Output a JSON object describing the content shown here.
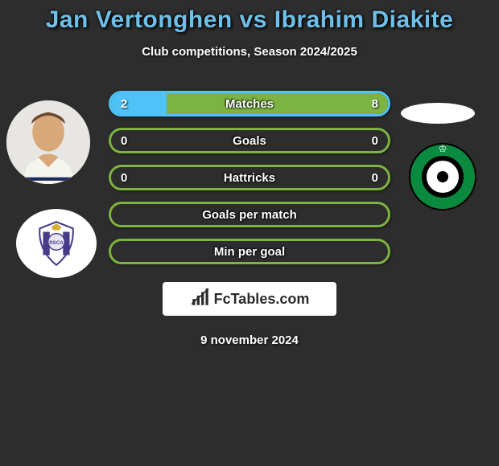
{
  "title": "Jan Vertonghen vs Ibrahim Diakite",
  "subtitle": "Club competitions, Season 2024/2025",
  "date_line": "9 november 2024",
  "logo_text": "FcTables.com",
  "colors": {
    "title": "#6fc0e8",
    "background": "#2d2d2d",
    "p1_border": "#4fc3f7",
    "p1_fill": "#4fc3f7",
    "p2_border": "#7cb342",
    "p2_fill": "#7cb342",
    "cercle_green": "#0a8a3f"
  },
  "bars": [
    {
      "label": "Matches",
      "left": "2",
      "right": "8",
      "border": "#4fc3f7",
      "fill_left_pct": 20,
      "fill_right_pct": 80,
      "fill_left_color": "#4fc3f7",
      "fill_right_color": "#7cb342",
      "show_values": true
    },
    {
      "label": "Goals",
      "left": "0",
      "right": "0",
      "border": "#7cb342",
      "fill_left_pct": 0,
      "fill_right_pct": 0,
      "show_values": true
    },
    {
      "label": "Hattricks",
      "left": "0",
      "right": "0",
      "border": "#7cb342",
      "fill_left_pct": 0,
      "fill_right_pct": 0,
      "show_values": true
    },
    {
      "label": "Goals per match",
      "left": "",
      "right": "",
      "border": "#7cb342",
      "fill_left_pct": 0,
      "fill_right_pct": 0,
      "show_values": false
    },
    {
      "label": "Min per goal",
      "left": "",
      "right": "",
      "border": "#7cb342",
      "fill_left_pct": 0,
      "fill_right_pct": 0,
      "show_values": false
    }
  ]
}
